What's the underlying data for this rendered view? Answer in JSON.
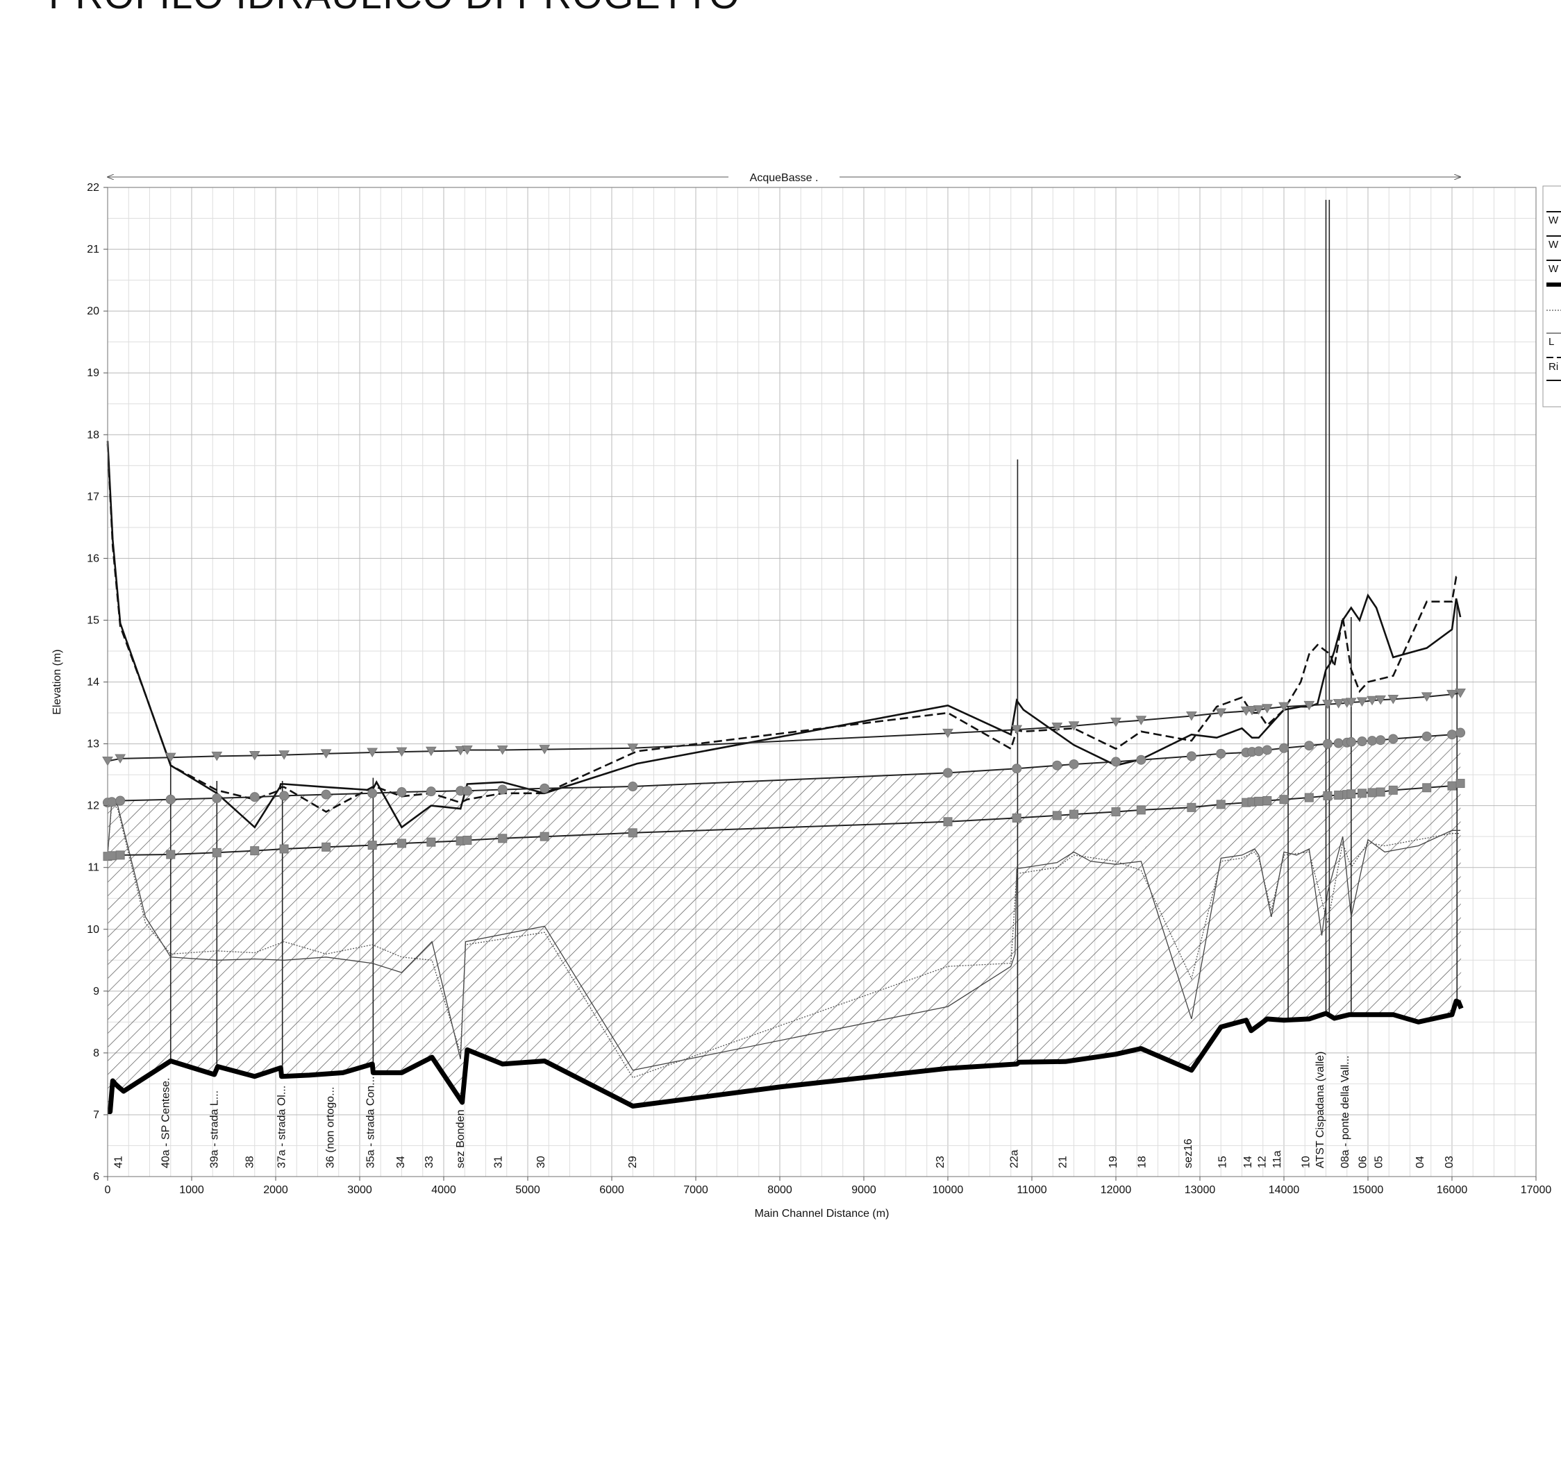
{
  "page_title": "PROFILO IDRAULICO DI PROGETTO",
  "chart_data": {
    "type": "line",
    "title": "PROFILO IDRAULICO DI PROGETTO",
    "reach_label": "AcqueBasse .",
    "xlabel": "Main Channel Distance (m)",
    "ylabel": "Elevation (m)",
    "xlim": [
      0,
      17000
    ],
    "ylim": [
      6,
      22
    ],
    "x_ticks": [
      0,
      1000,
      2000,
      3000,
      4000,
      5000,
      6000,
      7000,
      8000,
      9000,
      10000,
      11000,
      12000,
      13000,
      14000,
      15000,
      16000,
      17000
    ],
    "y_ticks": [
      6,
      7,
      8,
      9,
      10,
      11,
      12,
      13,
      14,
      15,
      16,
      17,
      18,
      19,
      20,
      21,
      22
    ],
    "grid": true,
    "legend_placement": "top-right (cropped)",
    "legend_entries": [
      "W",
      "W",
      "W",
      "",
      "",
      "L",
      "Ri"
    ],
    "cross_sections": [
      {
        "x": 120,
        "label": "41"
      },
      {
        "x": 680,
        "label": "40a - SP Centese."
      },
      {
        "x": 1260,
        "label": "39a - strada L..."
      },
      {
        "x": 1680,
        "label": "38"
      },
      {
        "x": 2060,
        "label": "37a - strada Ol..."
      },
      {
        "x": 2640,
        "label": "36 (non ortogo..."
      },
      {
        "x": 3120,
        "label": "35a - strada Con..."
      },
      {
        "x": 3480,
        "label": "34"
      },
      {
        "x": 3820,
        "label": "33"
      },
      {
        "x": 4190,
        "label": "sez Bonden"
      },
      {
        "x": 4640,
        "label": "31"
      },
      {
        "x": 5150,
        "label": "30"
      },
      {
        "x": 6240,
        "label": "29"
      },
      {
        "x": 9900,
        "label": "23"
      },
      {
        "x": 10780,
        "label": "22a"
      },
      {
        "x": 11360,
        "label": "21"
      },
      {
        "x": 11960,
        "label": "19"
      },
      {
        "x": 12300,
        "label": "18"
      },
      {
        "x": 12850,
        "label": "sez16"
      },
      {
        "x": 13260,
        "label": "15"
      },
      {
        "x": 13560,
        "label": "14"
      },
      {
        "x": 13730,
        "label": "12"
      },
      {
        "x": 13910,
        "label": "11a"
      },
      {
        "x": 14250,
        "label": "10"
      },
      {
        "x": 14420,
        "label": "ATST Cispadana (valle)"
      },
      {
        "x": 14720,
        "label": "08a - ponte della Vall..."
      },
      {
        "x": 14930,
        "label": "06"
      },
      {
        "x": 15120,
        "label": "05"
      },
      {
        "x": 15610,
        "label": "04"
      },
      {
        "x": 15960,
        "label": "03"
      }
    ],
    "series": [
      {
        "role": "ground-bed",
        "style": "thick-black",
        "x": [
          0,
          30,
          60,
          90,
          130,
          190,
          750,
          1270,
          1310,
          1750,
          2060,
          2070,
          2400,
          2800,
          3150,
          3160,
          3500,
          3860,
          4220,
          4280,
          4700,
          5200,
          6250,
          8000,
          10000,
          10820,
          10850,
          11400,
          12000,
          12300,
          12900,
          13250,
          13550,
          13610,
          13700,
          13800,
          14000,
          14300,
          14500,
          14600,
          14780,
          15000,
          15300,
          15600,
          16000,
          16050,
          16080,
          16110
        ],
        "y": [
          7.05,
          7.05,
          7.55,
          7.5,
          7.45,
          7.38,
          7.87,
          7.65,
          7.78,
          7.62,
          7.76,
          7.62,
          7.64,
          7.68,
          7.82,
          7.68,
          7.68,
          7.93,
          7.2,
          8.05,
          7.82,
          7.87,
          7.14,
          7.45,
          7.75,
          7.82,
          7.85,
          7.86,
          7.98,
          8.07,
          7.72,
          8.42,
          8.53,
          8.36,
          8.45,
          8.55,
          8.53,
          8.55,
          8.64,
          8.56,
          8.62,
          8.62,
          8.62,
          8.5,
          8.62,
          8.84,
          8.82,
          8.72
        ]
      },
      {
        "role": "left-bank",
        "style": "thin-grey",
        "x": [
          0,
          50,
          120,
          450,
          750,
          1300,
          1750,
          2100,
          2600,
          3150,
          3500,
          3860,
          4200,
          4260,
          5200,
          6250,
          10000,
          10750,
          10800,
          10820,
          11300,
          11500,
          11700,
          12000,
          12300,
          12900,
          13250,
          13500,
          13650,
          13700,
          13850,
          14000,
          14150,
          14300,
          14450,
          14520,
          14700,
          14800,
          15000,
          15200,
          15600,
          16000,
          16100
        ],
        "y": [
          11.2,
          12.1,
          12.0,
          10.2,
          9.55,
          9.5,
          9.52,
          9.5,
          9.55,
          9.45,
          9.3,
          9.8,
          7.9,
          9.8,
          10.05,
          7.72,
          8.75,
          9.4,
          9.6,
          10.98,
          11.08,
          11.25,
          11.1,
          11.05,
          11.1,
          8.55,
          11.15,
          11.2,
          11.3,
          11.2,
          10.2,
          11.25,
          11.2,
          11.3,
          9.9,
          10.6,
          11.5,
          10.2,
          11.45,
          11.25,
          11.35,
          11.6,
          11.6
        ]
      },
      {
        "role": "right-bank",
        "style": "dotted",
        "x": [
          0,
          50,
          120,
          450,
          750,
          1300,
          1750,
          2100,
          2600,
          3150,
          3500,
          3860,
          4200,
          4260,
          5200,
          6250,
          10000,
          10750,
          10820,
          11300,
          11500,
          12000,
          12300,
          12900,
          13250,
          13500,
          13650,
          13700,
          13850,
          14000,
          14300,
          14520,
          14700,
          14800,
          15000,
          15200,
          15600,
          16000,
          16100
        ],
        "y": [
          11.2,
          12.05,
          11.95,
          10.1,
          9.6,
          9.65,
          9.62,
          9.8,
          9.6,
          9.75,
          9.55,
          9.5,
          8.0,
          9.75,
          9.95,
          7.6,
          9.4,
          9.45,
          10.9,
          11.0,
          11.2,
          11.1,
          10.95,
          9.2,
          11.1,
          11.15,
          11.25,
          11.15,
          10.3,
          11.2,
          11.25,
          10.1,
          11.4,
          11.0,
          11.4,
          11.35,
          11.45,
          11.55,
          11.55
        ]
      },
      {
        "role": "energy-grade",
        "style": "solid-black",
        "x": [
          0,
          60,
          150,
          450,
          750,
          1300,
          1750,
          2050,
          2060,
          2100,
          2600,
          3150,
          3200,
          3500,
          3850,
          4200,
          4280,
          4700,
          5200,
          6300,
          10000,
          10750,
          10820,
          10900,
          11500,
          12000,
          12300,
          12900,
          13200,
          13500,
          13620,
          13700,
          13800,
          14000,
          14200,
          14300,
          14400,
          14500,
          14550,
          14600,
          14700,
          14800,
          14900,
          15000,
          15100,
          15300,
          15700,
          16000,
          16050,
          16100
        ],
        "y": [
          17.9,
          16.3,
          14.95,
          13.8,
          12.65,
          12.2,
          11.65,
          12.3,
          12.35,
          12.35,
          12.3,
          12.25,
          12.38,
          11.65,
          12.0,
          11.95,
          12.35,
          12.38,
          12.2,
          12.68,
          13.62,
          13.15,
          13.7,
          13.55,
          12.98,
          12.65,
          12.75,
          13.15,
          13.1,
          13.25,
          13.1,
          13.1,
          13.25,
          13.55,
          13.6,
          13.6,
          13.65,
          14.2,
          14.3,
          14.5,
          15.0,
          15.2,
          15.0,
          15.4,
          15.2,
          14.4,
          14.55,
          14.85,
          15.35,
          15.05
        ]
      },
      {
        "role": "critical-depth",
        "style": "dashed-black",
        "x": [
          0,
          60,
          150,
          450,
          750,
          1300,
          1750,
          2050,
          2060,
          2100,
          2600,
          3150,
          3200,
          3500,
          3850,
          4200,
          4280,
          4700,
          5200,
          6300,
          10000,
          10750,
          10820,
          10900,
          11500,
          12000,
          12300,
          12900,
          13200,
          13500,
          13620,
          13700,
          13800,
          14000,
          14200,
          14300,
          14400,
          14500,
          14550,
          14600,
          14700,
          14800,
          14900,
          15000,
          15300,
          15700,
          16000,
          16050,
          16100
        ],
        "y": [
          17.85,
          16.2,
          14.9,
          13.8,
          12.65,
          12.25,
          12.1,
          12.25,
          12.3,
          12.3,
          11.9,
          12.3,
          12.3,
          12.15,
          12.2,
          12.05,
          12.1,
          12.2,
          12.2,
          12.88,
          13.5,
          12.92,
          13.22,
          13.2,
          13.25,
          12.92,
          13.2,
          13.05,
          13.6,
          13.75,
          13.5,
          13.5,
          13.3,
          13.55,
          14.0,
          14.45,
          14.6,
          14.5,
          14.45,
          14.25,
          15.05,
          14.2,
          13.85,
          14.0,
          14.1,
          15.3,
          15.3,
          15.7,
          15.7
        ]
      },
      {
        "role": "water-surface-1",
        "style": "triangle-markers",
        "x": [
          0,
          150,
          750,
          1300,
          1750,
          2100,
          2600,
          3150,
          3500,
          3850,
          4200,
          4280,
          4700,
          5200,
          6250,
          10000,
          10820,
          11300,
          11500,
          12000,
          12300,
          12900,
          13250,
          13550,
          13620,
          13700,
          13800,
          14000,
          14300,
          14520,
          14650,
          14750,
          14800,
          14930,
          15050,
          15150,
          15300,
          15700,
          16000,
          16100
        ],
        "y": [
          12.72,
          12.76,
          12.78,
          12.8,
          12.81,
          12.82,
          12.84,
          12.86,
          12.87,
          12.88,
          12.89,
          12.9,
          12.9,
          12.91,
          12.93,
          13.17,
          13.23,
          13.27,
          13.29,
          13.35,
          13.38,
          13.45,
          13.5,
          13.53,
          13.54,
          13.55,
          13.57,
          13.6,
          13.62,
          13.64,
          13.65,
          13.66,
          13.67,
          13.68,
          13.7,
          13.71,
          13.72,
          13.76,
          13.8,
          13.82
        ]
      },
      {
        "role": "water-surface-2",
        "style": "circle-markers",
        "x": [
          0,
          50,
          150,
          750,
          1300,
          1750,
          2100,
          2600,
          3150,
          3500,
          3850,
          4200,
          4280,
          4700,
          5200,
          6250,
          10000,
          10820,
          11300,
          11500,
          12000,
          12300,
          12900,
          13250,
          13550,
          13620,
          13700,
          13800,
          14000,
          14300,
          14520,
          14650,
          14750,
          14800,
          14930,
          15050,
          15150,
          15300,
          15700,
          16000,
          16100
        ],
        "y": [
          12.05,
          12.06,
          12.08,
          12.1,
          12.12,
          12.14,
          12.16,
          12.18,
          12.2,
          12.22,
          12.23,
          12.24,
          12.24,
          12.26,
          12.28,
          12.31,
          12.53,
          12.6,
          12.65,
          12.67,
          12.71,
          12.74,
          12.8,
          12.84,
          12.86,
          12.87,
          12.88,
          12.9,
          12.93,
          12.97,
          13.0,
          13.01,
          13.02,
          13.03,
          13.04,
          13.05,
          13.06,
          13.08,
          13.12,
          13.15,
          13.18
        ]
      },
      {
        "role": "water-surface-3",
        "style": "square-markers",
        "x": [
          0,
          50,
          150,
          750,
          1300,
          1750,
          2100,
          2600,
          3150,
          3500,
          3850,
          4200,
          4280,
          4700,
          5200,
          6250,
          10000,
          10820,
          11300,
          11500,
          12000,
          12300,
          12900,
          13250,
          13550,
          13620,
          13700,
          13800,
          14000,
          14300,
          14520,
          14650,
          14750,
          14800,
          14930,
          15050,
          15150,
          15300,
          15700,
          16000,
          16100
        ],
        "y": [
          11.18,
          11.19,
          11.2,
          11.21,
          11.24,
          11.27,
          11.3,
          11.33,
          11.36,
          11.39,
          11.41,
          11.43,
          11.44,
          11.47,
          11.5,
          11.56,
          11.74,
          11.8,
          11.84,
          11.86,
          11.9,
          11.93,
          11.97,
          12.02,
          12.05,
          12.06,
          12.07,
          12.08,
          12.1,
          12.13,
          12.16,
          12.17,
          12.18,
          12.19,
          12.2,
          12.21,
          12.22,
          12.25,
          12.29,
          12.32,
          12.36
        ]
      }
    ],
    "structures": [
      {
        "x": 750,
        "top": 12.7,
        "bottom": 7.87
      },
      {
        "x": 1300,
        "top": 12.4,
        "bottom": 7.7
      },
      {
        "x": 2080,
        "top": 12.4,
        "bottom": 7.7
      },
      {
        "x": 3160,
        "top": 12.45,
        "bottom": 7.75
      },
      {
        "x": 10830,
        "top": 17.6,
        "bottom": 7.85
      },
      {
        "x": 14050,
        "top": 13.6,
        "bottom": 8.55
      },
      {
        "x": 14500,
        "top": 21.8,
        "bottom": 8.6
      },
      {
        "x": 14540,
        "top": 21.8,
        "bottom": 8.6
      },
      {
        "x": 14800,
        "top": 15.05,
        "bottom": 8.6
      },
      {
        "x": 16060,
        "top": 15.3,
        "bottom": 8.8
      }
    ]
  }
}
